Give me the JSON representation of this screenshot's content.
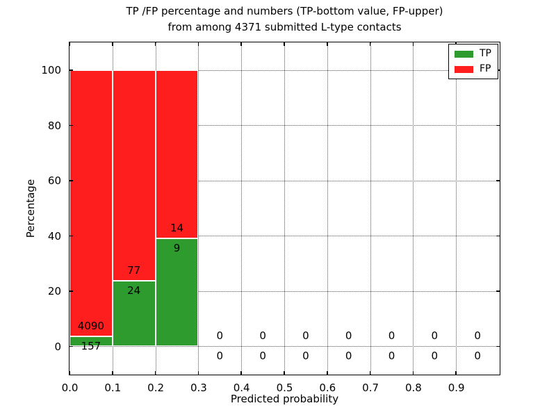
{
  "title": {
    "line1": "TP /FP percentage and numbers (TP-bottom value, FP-upper)",
    "line2": "from among 4371 submitted L-type contacts"
  },
  "chart_data": {
    "type": "bar",
    "stacked": true,
    "title": "TP /FP percentage and numbers (TP-bottom value, FP-upper) from among 4371 submitted L-type contacts",
    "xlabel": "Predicted probability",
    "ylabel": "Percentage",
    "xlim": [
      0,
      1.0
    ],
    "ylim": [
      -10,
      110
    ],
    "xticks": [
      "0.0",
      "0.1",
      "0.2",
      "0.3",
      "0.4",
      "0.5",
      "0.6",
      "0.7",
      "0.8",
      "0.9"
    ],
    "yticks": [
      "0",
      "20",
      "40",
      "60",
      "80",
      "100"
    ],
    "grid": "dotted",
    "annotation_note": "TP count printed below segment boundary, FP count printed above it",
    "legend": {
      "position": "upper-right",
      "items": [
        {
          "label": "TP",
          "color": "#2e9b2e"
        },
        {
          "label": "FP",
          "color": "#ff1e1e"
        }
      ]
    },
    "bins": [
      {
        "x0": 0.0,
        "x1": 0.1,
        "tp": 157,
        "fp": 4090,
        "tp_pct": 3.7,
        "fp_pct": 96.3
      },
      {
        "x0": 0.1,
        "x1": 0.2,
        "tp": 24,
        "fp": 77,
        "tp_pct": 23.76,
        "fp_pct": 76.24
      },
      {
        "x0": 0.2,
        "x1": 0.3,
        "tp": 9,
        "fp": 14,
        "tp_pct": 39.13,
        "fp_pct": 60.87
      },
      {
        "x0": 0.3,
        "x1": 0.4,
        "tp": 0,
        "fp": 0,
        "tp_pct": 0,
        "fp_pct": 0
      },
      {
        "x0": 0.4,
        "x1": 0.5,
        "tp": 0,
        "fp": 0,
        "tp_pct": 0,
        "fp_pct": 0
      },
      {
        "x0": 0.5,
        "x1": 0.6,
        "tp": 0,
        "fp": 0,
        "tp_pct": 0,
        "fp_pct": 0
      },
      {
        "x0": 0.6,
        "x1": 0.7,
        "tp": 0,
        "fp": 0,
        "tp_pct": 0,
        "fp_pct": 0
      },
      {
        "x0": 0.7,
        "x1": 0.8,
        "tp": 0,
        "fp": 0,
        "tp_pct": 0,
        "fp_pct": 0
      },
      {
        "x0": 0.8,
        "x1": 0.9,
        "tp": 0,
        "fp": 0,
        "tp_pct": 0,
        "fp_pct": 0
      },
      {
        "x0": 0.9,
        "x1": 1.0,
        "tp": 0,
        "fp": 0,
        "tp_pct": 0,
        "fp_pct": 0
      }
    ]
  }
}
